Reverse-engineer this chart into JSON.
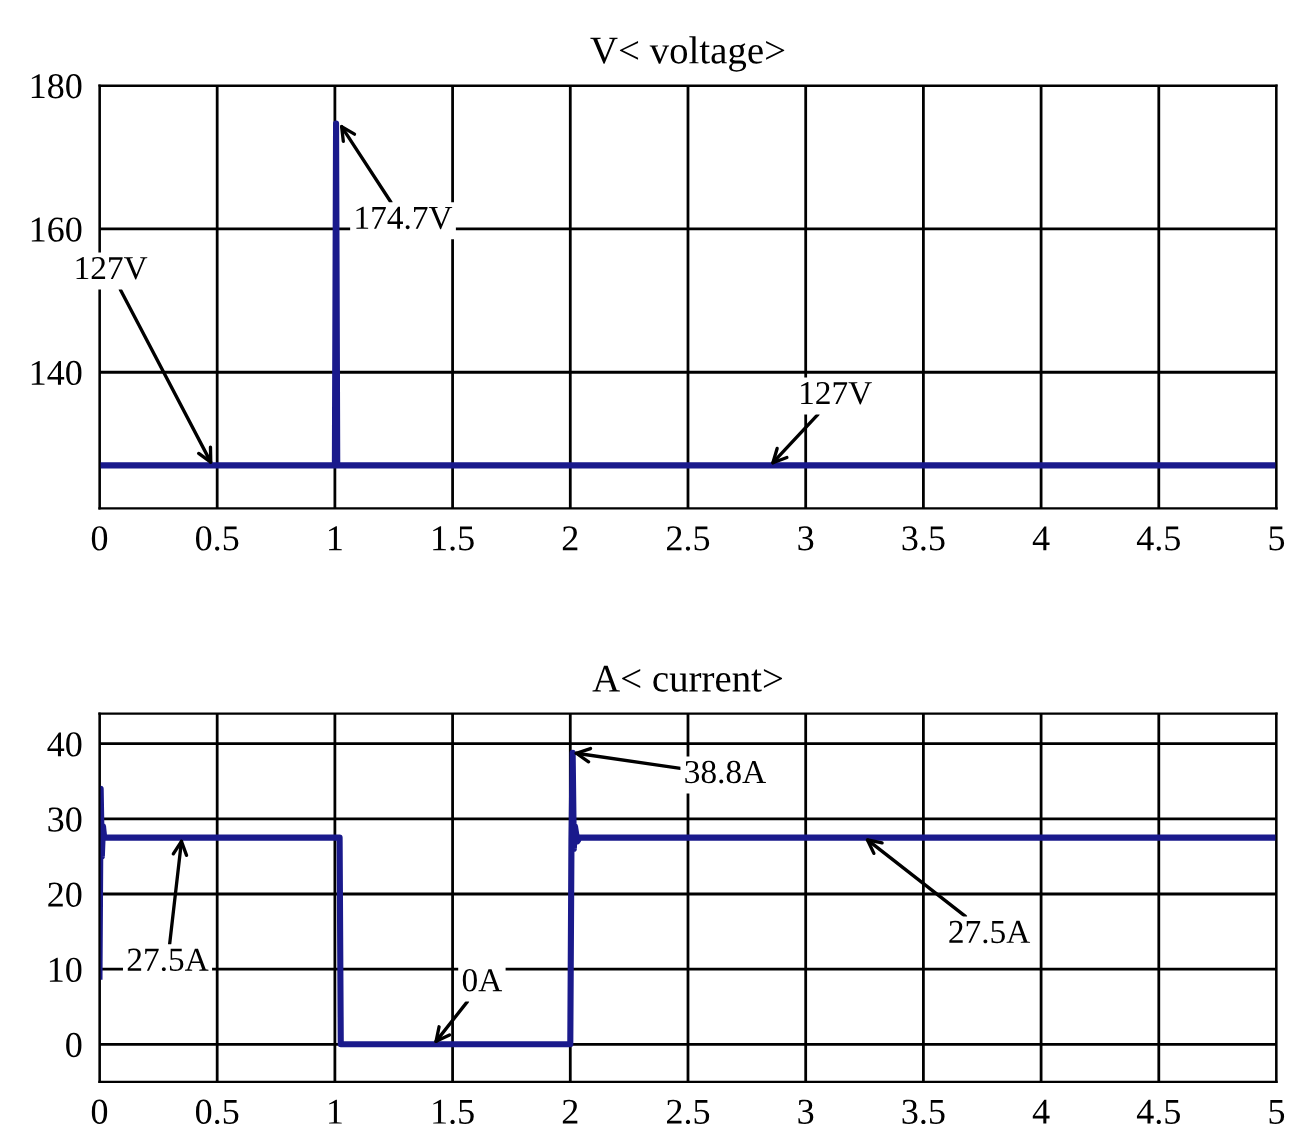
{
  "chart_data": [
    {
      "type": "line",
      "title": "V< voltage>",
      "x": [
        0,
        1.0,
        1.005,
        1.01,
        5
      ],
      "series": [
        {
          "color": "#1a1a8c",
          "values": [
            127,
            127,
            174.7,
            127,
            127
          ]
        }
      ],
      "xlim": [
        0,
        5
      ],
      "ylim": [
        121,
        180
      ],
      "xticks": [
        0,
        0.5,
        1,
        1.5,
        2,
        2.5,
        3,
        3.5,
        4,
        4.5,
        5
      ],
      "yticks": [
        140,
        160,
        180
      ],
      "grid": true,
      "annotations": [
        {
          "text": "127V",
          "x": 0.48,
          "y": 127
        },
        {
          "text": "174.7V",
          "x": 1.02,
          "y": 174.7
        },
        {
          "text": "127V",
          "x": 2.85,
          "y": 127
        }
      ]
    },
    {
      "type": "line",
      "title": "A< current>",
      "x": [
        0,
        0.005,
        0.01,
        0.015,
        0.02,
        1.02,
        1.025,
        2.0,
        2.005,
        2.01,
        2.015,
        2.02,
        2.03,
        2.04,
        5
      ],
      "series": [
        {
          "color": "#1a1a8c",
          "values": [
            9,
            34,
            25,
            29,
            27.5,
            27.5,
            0,
            0,
            27,
            38.8,
            26,
            29,
            27,
            27.5,
            27.5
          ]
        }
      ],
      "xlim": [
        0,
        5
      ],
      "ylim": [
        -5,
        44
      ],
      "xticks": [
        0,
        0.5,
        1,
        1.5,
        2,
        2.5,
        3,
        3.5,
        4,
        4.5,
        5
      ],
      "yticks": [
        0,
        10,
        20,
        30,
        40
      ],
      "grid": true,
      "annotations": [
        {
          "text": "27.5A",
          "x": 0.35,
          "y": 27.5
        },
        {
          "text": "0A",
          "x": 1.42,
          "y": 0
        },
        {
          "text": "38.8A",
          "x": 2.01,
          "y": 38.8
        },
        {
          "text": "27.5A",
          "x": 3.25,
          "y": 27.5
        }
      ]
    }
  ]
}
